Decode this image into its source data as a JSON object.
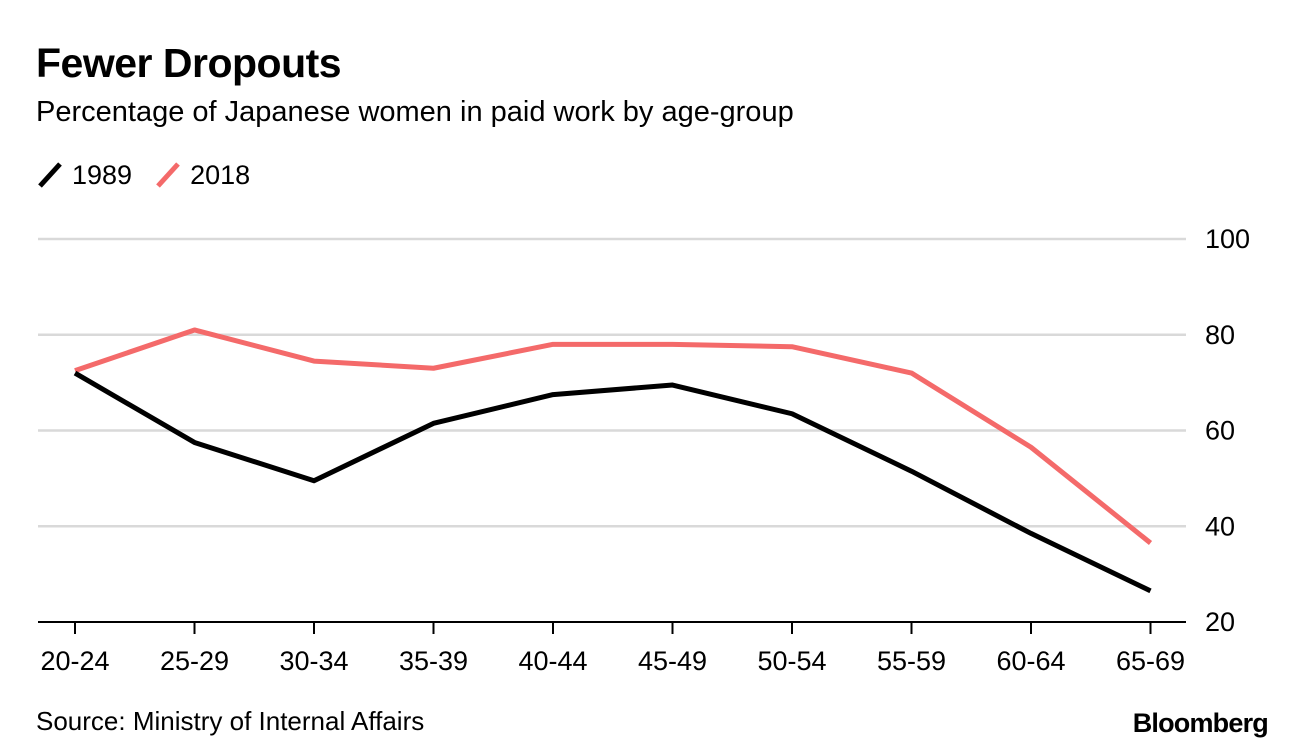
{
  "chart_data": {
    "type": "line",
    "title": "Fewer Dropouts",
    "subtitle": "Percentage of Japanese women in paid work by age-group",
    "categories": [
      "20-24",
      "25-29",
      "30-34",
      "35-39",
      "40-44",
      "45-49",
      "50-54",
      "55-59",
      "60-64",
      "65-69"
    ],
    "series": [
      {
        "name": "1989",
        "color": "#000000",
        "values": [
          72,
          57.5,
          49.5,
          61.5,
          67.5,
          69.5,
          63.5,
          51.5,
          38.5,
          26.5
        ]
      },
      {
        "name": "2018",
        "color": "#f46a6a",
        "values": [
          72.5,
          81,
          74.5,
          73,
          78,
          78,
          77.5,
          72,
          56.5,
          36.5
        ]
      }
    ],
    "ylim": [
      20,
      100
    ],
    "yticks": [
      "20",
      "40",
      "60",
      "80",
      "100"
    ],
    "grid": true,
    "legend_position": "top-left",
    "y_axis_side": "right",
    "xlabel": "",
    "ylabel": ""
  },
  "footer": {
    "source": "Source: Ministry of Internal Affairs",
    "brand": "Bloomberg"
  }
}
